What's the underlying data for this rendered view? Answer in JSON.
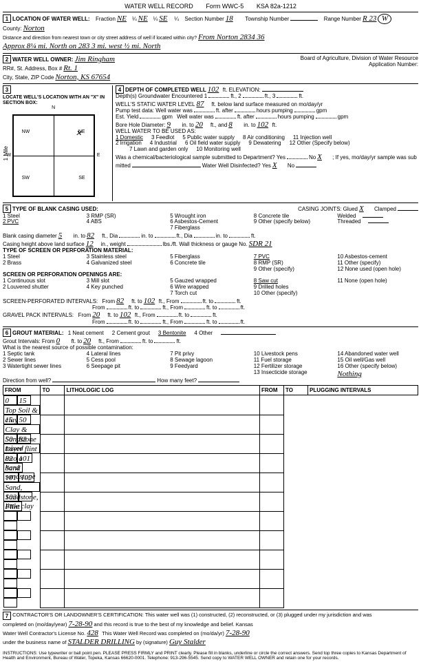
{
  "form": {
    "title": "WATER WELL RECORD",
    "form_no": "Form WWC-5",
    "ksa": "KSA 82a-1212"
  },
  "sec1": {
    "heading": "LOCATION OF WATER WELL:",
    "county_label": "County:",
    "county": "Norton",
    "fraction_label": "Fraction",
    "frac1": "NE",
    "q1": "¼",
    "frac2": "NE",
    "q2": "¼",
    "frac3": "SE",
    "q3": "¼",
    "section_label": "Section Number",
    "section": "18",
    "township_label": "Township Number",
    "township": "",
    "range_label": "Range Number",
    "range": "R 23",
    "range_dir": "W",
    "dist_label": "Distance and direction from nearest town or city street address of well if located within city?",
    "dist": "From Norton  2834 36",
    "dist2": "Approx 8¼ mi. North on 283   3 mi. west  ½ mi. North"
  },
  "sec2": {
    "heading": "WATER WELL OWNER:",
    "owner": "Jim Ringham",
    "addr_label": "RR#, St. Address, Box #",
    "addr": "Rt. 1",
    "city_label": "City, State, ZIP Code",
    "city": "Norton, KS  67654",
    "board": "Board of Agriculture, Division of Water Resource",
    "app_label": "Application Number:"
  },
  "sec3": {
    "heading": "LOCATE WELL'S LOCATION WITH AN \"X\" IN SECTION BOX:",
    "n": "N",
    "nw": "NW",
    "ne": "NE",
    "sw": "SW",
    "se": "SE",
    "w": "W",
    "e": "E",
    "mile": "1 Mile"
  },
  "sec4": {
    "heading": "DEPTH OF COMPLETED WELL",
    "depth": "102",
    "elev_label": "ft. ELEVATION:",
    "gw_label": "Depth(s) Groundwater Encountered",
    "gw1": "",
    "gw2": "",
    "gw3": "",
    "swl_label": "WELL'S STATIC WATER LEVEL",
    "swl": "87",
    "swl_suffix": "ft. below land surface measured on mo/day/yr",
    "pump_label": "Pump test data:  Well water was",
    "pump_after": "ft. after",
    "pump_hours": "hours pumping",
    "pump_gpm": "gpm",
    "est_label": "Est. Yield",
    "est_gpm": "gpm",
    "well_was": "Well water was",
    "after": "ft. after",
    "hours": "hours pumping",
    "bore_label": "Bore Hole Diameter:",
    "bore1": "9",
    "bore_in": "in. to",
    "bore2": "20",
    "bore_ft": "ft., and",
    "bore3": "8",
    "bore_into": "in. to",
    "bore4": "102",
    "bore_f": "ft.",
    "use_label": "WELL WATER TO BE USED AS:",
    "u1": "1 Domestic",
    "u2": "2 Irrigation",
    "u3": "3 Feedlot",
    "u4": "4 Industrial",
    "u5": "5 Public water supply",
    "u6": "6 Oil field water supply",
    "u7": "7 Lawn and garden only",
    "u8": "8 Air conditioning",
    "u9": "9 Dewatering",
    "u10": "10 Monitoring well",
    "u11": "11 Injection well",
    "u12": "12 Other (Specify below)",
    "chem": "Was a chemical/bacteriological sample submitted to Department? Yes",
    "chem_no": "No",
    "chem_x": "X",
    "chem_if": "; If yes, mo/day/yr sample was sub",
    "mitted": "mitted",
    "disinfect": "Water Well Disinfected?  Yes",
    "dx": "X",
    "dno": "No"
  },
  "sec5": {
    "heading": "TYPE OF BLANK CASING USED:",
    "o1": "1 Steel",
    "o2": "2 PVC",
    "o3": "3 RMP (SR)",
    "o4": "4 ABS",
    "o5": "5 Wrought iron",
    "o6": "6 Asbestos-Cement",
    "o7": "7 Fiberglass",
    "o8": "8 Concrete tile",
    "o9": "9 Other (specify below)",
    "cj": "CASING JOINTS:",
    "cj1": "Glued",
    "cjx": "X",
    "cj2": "Clamped",
    "cj3": "Welded",
    "cj4": "Threaded",
    "bcd": "Blank casing diameter",
    "bcd1": "5",
    "into": "in. to",
    "bcd2": "82",
    "ftdia": "ft., Dia",
    "bcd3": "",
    "bcd4": "",
    "chls": "Casing height above land surface",
    "ch": "12",
    "chin": "in., weight",
    "chlbs": "lbs./ft. Wall thickness or gauge No.",
    "chg": "SDR 21",
    "screen": "TYPE OF SCREEN OR PERFORATION MATERIAL:",
    "s1": "1 Steel",
    "s2": "2 Brass",
    "s3": "3 Stainless steel",
    "s4": "4 Galvanized steel",
    "s5": "5 Fiberglass",
    "s6": "6 Concrete tile",
    "s7": "7 PVC",
    "s8": "8 RMP (SR)",
    "s9": "9 Other (specify)",
    "s10": "10 Asbestos-cement",
    "s11": "11 Other (specify)",
    "s12": "12 None used (open hole)",
    "spo": "SCREEN OR PERFORATION OPENINGS ARE:",
    "p1": "1 Continuous slot",
    "p2": "2 Louvered shutter",
    "p3": "3 Mill slot",
    "p4": "4 Key punched",
    "p5": "5 Gauzed wrapped",
    "p6": "6 Wire wrapped",
    "p7": "7 Torch cut",
    "p8": "8 Saw cut",
    "p9": "9 Drilled holes",
    "p10": "10 Other (specify)",
    "p11": "11 None (open hole)",
    "spi": "SCREEN-PERFORATED INTERVALS:",
    "from": "From",
    "to": "ft. to",
    "ft_from": "ft., From",
    "ff": "ft. to",
    "fend": "ft.",
    "spi_f1": "82",
    "spi_t1": "102",
    "gpi": "GRAVEL PACK INTERVALS:",
    "gpi_f1": "20",
    "gpi_t1": "102"
  },
  "sec6": {
    "heading": "GROUT MATERIAL:",
    "g1": "1 Neat cement",
    "g2": "2 Cement grout",
    "g3": "3 Bentonite",
    "g4": "4 Other",
    "gi": "Grout Intervals:  From",
    "gif": "0",
    "gift": "ft. to",
    "git": "20",
    "gif2": "ft., From",
    "ft_to": "ft. to",
    "ft": "ft.",
    "contam": "What is the nearest source of possible contamination:",
    "c1": "1 Septic tank",
    "c2": "2 Sewer lines",
    "c3": "3 Watertight sewer lines",
    "c4": "4 Lateral lines",
    "c5": "5 Cess pool",
    "c6": "6 Seepage pit",
    "c7": "7 Pit privy",
    "c8": "8 Sewage lagoon",
    "c9": "9 Feedyard",
    "c10": "10 Livestock pens",
    "c11": "11 Fuel storage",
    "c12": "12 Fertilizer storage",
    "c13": "13 Insecticide storage",
    "c14": "14 Abandoned water well",
    "c15": "15 Oil well/Gas well",
    "c16": "16 Other (specify below)",
    "c16v": "Nothing",
    "dfw": "Direction from well?",
    "hmf": "How many feet?"
  },
  "log": {
    "h_from": "FROM",
    "h_to": "TO",
    "h_lith": "LITHOLOGIC LOG",
    "h_plug": "PLUGGING INTERVALS",
    "rows": [
      {
        "f": "0",
        "t": "15",
        "d": "Top Soil & clay"
      },
      {
        "f": "15",
        "t": "50",
        "d": "Clay & Sandstone mixed"
      },
      {
        "f": "50",
        "t": "82",
        "d": "Layer flint into a hard sandstone"
      },
      {
        "f": "82",
        "t": "101",
        "d": "Sand"
      },
      {
        "f": "101",
        "t": "102",
        "d": "Sand, Sandstone, little clay"
      },
      {
        "f": "102",
        "t": "",
        "d": "Flint"
      },
      {
        "f": "",
        "t": "",
        "d": ""
      },
      {
        "f": "",
        "t": "",
        "d": ""
      },
      {
        "f": "",
        "t": "",
        "d": ""
      },
      {
        "f": "",
        "t": "",
        "d": ""
      },
      {
        "f": "",
        "t": "",
        "d": ""
      }
    ]
  },
  "sec7": {
    "cert": "CONTRACTOR'S OR LANDOWNER'S CERTIFICATION: This water well was (1) constructed, (2) reconstructed, or (3) plugged under my jurisdiction and was",
    "completed": "completed on (mo/day/year)",
    "date": "7-28-90",
    "belief": "and this record is true to the best of my knowledge and belief. Kansas",
    "lic": "Water Well Contractor's License No.",
    "licno": "428",
    "rec": "This Water Well Record was completed on (mo/da/yr)",
    "recdate": "7-28-90",
    "biz": "under the business name of",
    "bizname": "STALDER DRILLING",
    "sig": "by (signature)",
    "signame": "Guy Stalder",
    "inst": "INSTRUCTIONS: Use typewriter or ball point pen. PLEASE PRESS FIRMLY and PRINT clearly. Please fill in blanks, underline or circle the correct answers. Send top three copies to Kansas Department of Health and Environment, Bureau of Water, Topeka, Kansas 66620-0001. Telephone: 913-296-5545. Send copy to WATER WELL OWNER and retain one for your records."
  }
}
